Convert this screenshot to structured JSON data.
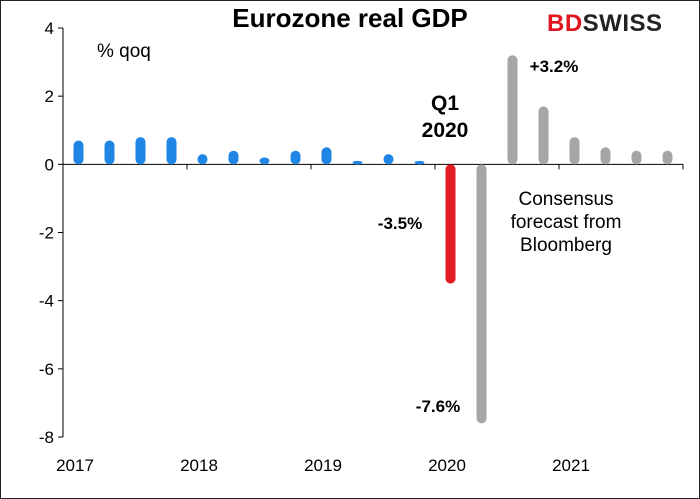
{
  "chart_data": {
    "type": "bar",
    "title": "Eurozone real GDP",
    "ylabel": "% qoq",
    "ylim": [
      -8,
      4
    ],
    "yticks": [
      4,
      2,
      0,
      -2,
      -4,
      -6,
      -8
    ],
    "xtick_labels": [
      "2017",
      "2018",
      "2019",
      "2020",
      "2021"
    ],
    "grid": false,
    "categories": [
      "2017 Q1",
      "2017 Q2",
      "2017 Q3",
      "2017 Q4",
      "2018 Q1",
      "2018 Q2",
      "2018 Q3",
      "2018 Q4",
      "2019 Q1",
      "2019 Q2",
      "2019 Q3",
      "2019 Q4",
      "2020 Q1",
      "2020 Q2",
      "2020 Q3",
      "2020 Q4",
      "2021 Q1",
      "2021 Q2",
      "2021 Q3",
      "2021 Q4"
    ],
    "series": [
      {
        "kind": "actual",
        "color": "#1f86e6",
        "values": [
          0.7,
          0.7,
          0.8,
          0.8,
          0.3,
          0.4,
          0.2,
          0.4,
          0.5,
          0.1,
          0.3,
          0.1,
          null,
          null,
          null,
          null,
          null,
          null,
          null,
          null
        ]
      },
      {
        "kind": "Q1 2020",
        "color": "#e31b23",
        "values": [
          null,
          null,
          null,
          null,
          null,
          null,
          null,
          null,
          null,
          null,
          null,
          null,
          -3.5,
          null,
          null,
          null,
          null,
          null,
          null,
          null
        ]
      },
      {
        "kind": "forecast",
        "color": "#a6a6a6",
        "values": [
          null,
          null,
          null,
          null,
          null,
          null,
          null,
          null,
          null,
          null,
          null,
          null,
          null,
          -7.6,
          3.2,
          1.7,
          0.8,
          0.5,
          0.4,
          0.4
        ]
      }
    ],
    "annotations": {
      "q1_line1": "Q1",
      "q1_line2": "2020",
      "q1_value": "-3.5%",
      "q2_value": "-7.6%",
      "q3_value": "+3.2%",
      "forecast_note_1": "Consensus",
      "forecast_note_2": "forecast from",
      "forecast_note_3": "Bloomberg"
    }
  },
  "logo": {
    "part1": "BD",
    "part2": "SWISS"
  },
  "colors": {
    "actual": "#1f86e6",
    "q1": "#e31b23",
    "forecast": "#a6a6a6"
  }
}
